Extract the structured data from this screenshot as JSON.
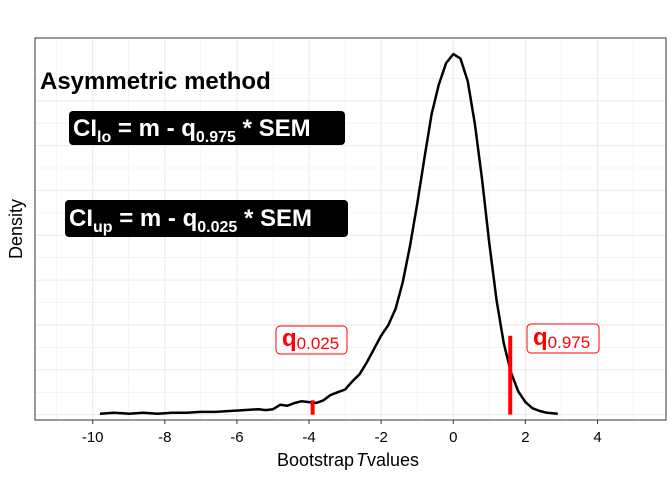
{
  "chart_data": {
    "type": "line",
    "title": "Asymmetric method",
    "xlabel_prefix": "Bootstrap",
    "xlabel_italic": "T",
    "xlabel_suffix": "values",
    "ylabel": "Density",
    "xlim": [
      -11.6,
      5.9
    ],
    "ylim": [
      -0.006,
      0.42
    ],
    "x_ticks": [
      -10,
      -8,
      -6,
      -4,
      -2,
      0,
      2,
      4
    ],
    "x_tick_labels": [
      "-10",
      "-8",
      "-6",
      "-4",
      "-2",
      "0",
      "2",
      "4"
    ],
    "grid": true,
    "series": [
      {
        "x": [
          -9.8,
          -9.4,
          -9.0,
          -8.6,
          -8.2,
          -7.8,
          -7.4,
          -7.0,
          -6.6,
          -6.2,
          -5.8,
          -5.4,
          -5.2,
          -5.0,
          -4.8,
          -4.6,
          -4.4,
          -4.2,
          -4.0,
          -3.8,
          -3.6,
          -3.4,
          -3.2,
          -3.0,
          -2.8,
          -2.6,
          -2.4,
          -2.2,
          -2.0,
          -1.8,
          -1.6,
          -1.4,
          -1.2,
          -1.0,
          -0.8,
          -0.6,
          -0.4,
          -0.2,
          0.0,
          0.2,
          0.4,
          0.6,
          0.8,
          1.0,
          1.2,
          1.4,
          1.6,
          1.8,
          2.0,
          2.2,
          2.4,
          2.6,
          2.9
        ],
        "y": [
          0.001,
          0.002,
          0.001,
          0.002,
          0.001,
          0.002,
          0.002,
          0.003,
          0.003,
          0.004,
          0.005,
          0.006,
          0.005,
          0.006,
          0.011,
          0.01,
          0.013,
          0.015,
          0.014,
          0.013,
          0.016,
          0.022,
          0.025,
          0.028,
          0.037,
          0.045,
          0.058,
          0.073,
          0.088,
          0.1,
          0.118,
          0.148,
          0.188,
          0.235,
          0.286,
          0.335,
          0.368,
          0.392,
          0.402,
          0.397,
          0.372,
          0.324,
          0.262,
          0.191,
          0.128,
          0.08,
          0.047,
          0.026,
          0.014,
          0.007,
          0.004,
          0.002,
          0.001
        ]
      }
    ],
    "quantile_lines": [
      {
        "x": 1.58,
        "height": 0.088,
        "sub": "0.975"
      },
      {
        "x": -3.9,
        "height": 0.016,
        "sub": "0.025"
      }
    ],
    "annotations": {
      "formula1": {
        "lhs": "CI",
        "lhs_sub": "lo",
        "mid": " = m - q",
        "q_sub": "0.975",
        "rhs": " * SEM"
      },
      "formula2": {
        "lhs": "CI",
        "lhs_sub": "up",
        "mid": " = m - q",
        "q_sub": "0.025",
        "rhs": " * SEM"
      },
      "q_low": {
        "q": "q",
        "sub": "0.025"
      },
      "q_high": {
        "q": "q",
        "sub": "0.975"
      }
    },
    "colors": {
      "curve": "#000000",
      "quantile": "#ff0000",
      "label_bg": "#000000"
    }
  }
}
